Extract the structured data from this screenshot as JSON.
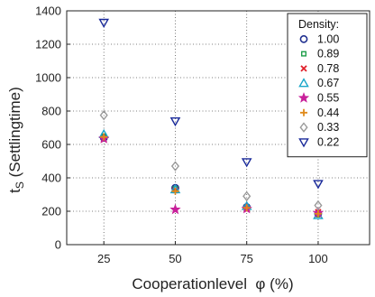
{
  "chart_data": {
    "type": "scatter",
    "title": "",
    "xlabel": "Cooperationlevel  φ (%)",
    "ylabel_main": "t",
    "ylabel_sub": "S",
    "ylabel_tail": " (Settlingtime)",
    "x_ticks": [
      25,
      50,
      75,
      100
    ],
    "y_ticks": [
      0,
      200,
      400,
      600,
      800,
      1000,
      1200,
      1400
    ],
    "xlim": [
      12,
      118
    ],
    "ylim": [
      0,
      1400
    ],
    "grid": true,
    "grid_style": "dotted",
    "legend": {
      "title": "Density:",
      "position": "top-right"
    },
    "series": [
      {
        "name": "1.00",
        "marker": "circle",
        "color": "#1f2f8f",
        "x": [
          25,
          50,
          75,
          100
        ],
        "values": [
          640,
          340,
          225,
          185
        ]
      },
      {
        "name": "0.89",
        "marker": "square",
        "color": "#1f9e4a",
        "x": [
          25,
          50,
          75,
          100
        ],
        "values": [
          650,
          335,
          220,
          180
        ]
      },
      {
        "name": "0.78",
        "marker": "x",
        "color": "#e0202a",
        "x": [
          25,
          50,
          75,
          100
        ],
        "values": [
          630,
          325,
          215,
          195
        ]
      },
      {
        "name": "0.67",
        "marker": "triangle-up",
        "color": "#19a6c9",
        "x": [
          25,
          50,
          75,
          100
        ],
        "values": [
          660,
          330,
          230,
          175
        ]
      },
      {
        "name": "0.55",
        "marker": "star",
        "color": "#c8209a",
        "x": [
          25,
          50,
          75,
          100
        ],
        "values": [
          635,
          210,
          215,
          190
        ]
      },
      {
        "name": "0.44",
        "marker": "plus",
        "color": "#e08a1a",
        "x": [
          25,
          50,
          75,
          100
        ],
        "values": [
          645,
          320,
          220,
          185
        ]
      },
      {
        "name": "0.33",
        "marker": "diamond",
        "color": "#9a9a9a",
        "x": [
          25,
          50,
          75,
          100
        ],
        "values": [
          775,
          470,
          290,
          235
        ]
      },
      {
        "name": "0.22",
        "marker": "triangle-down",
        "color": "#1a2a9a",
        "x": [
          25,
          50,
          75,
          100
        ],
        "values": [
          1330,
          740,
          495,
          365
        ]
      }
    ]
  }
}
